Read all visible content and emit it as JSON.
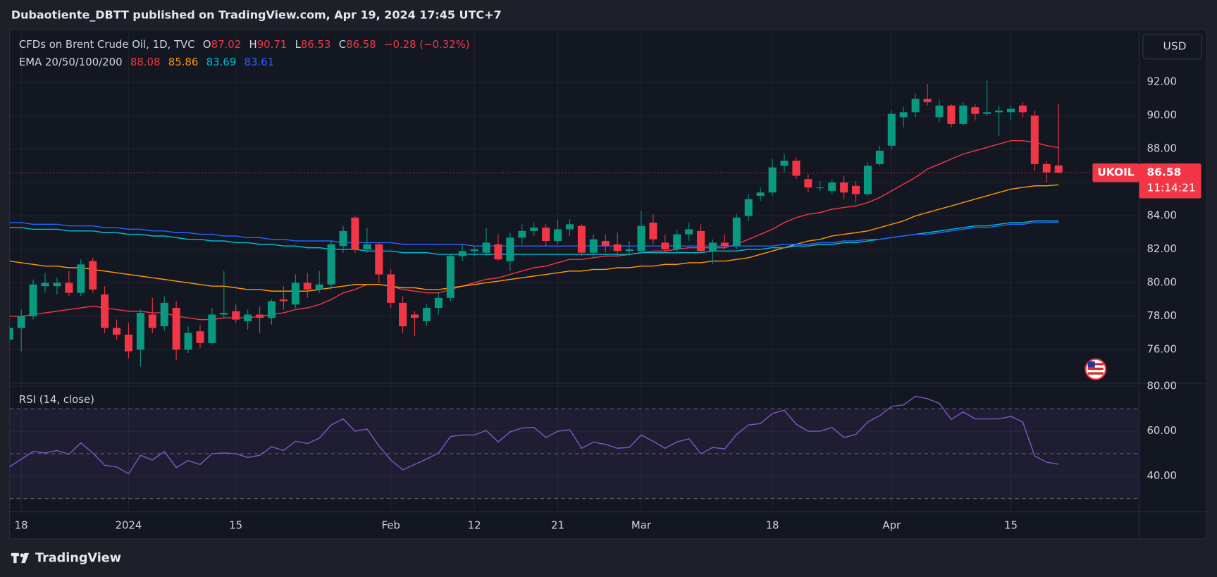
{
  "header": {
    "text": "Dubaotiente_DBTT published on TradingView.com, Apr 19, 2024 17:45 UTC+7"
  },
  "chart_data": {
    "type": "candlestick",
    "title": "CFDs on Brent Crude Oil, 1D, TVC",
    "ohlc_labels": [
      "O",
      "H",
      "L",
      "C"
    ],
    "change_label": "−0.28 (−0.32%)",
    "currency": "USD",
    "symbol": "UKOIL",
    "countdown": "11:14:21",
    "categories": [
      null,
      "18",
      null,
      null,
      null,
      null,
      null,
      null,
      null,
      null,
      "2024",
      null,
      null,
      null,
      null,
      null,
      null,
      null,
      null,
      "15",
      null,
      null,
      null,
      null,
      null,
      null,
      null,
      null,
      null,
      null,
      null,
      null,
      "Feb",
      null,
      null,
      null,
      null,
      null,
      null,
      "12",
      null,
      null,
      null,
      null,
      null,
      null,
      "21",
      null,
      null,
      null,
      null,
      null,
      null,
      "Mar",
      null,
      null,
      null,
      null,
      null,
      null,
      null,
      null,
      null,
      null,
      "18",
      null,
      null,
      null,
      null,
      null,
      null,
      null,
      null,
      null,
      "Apr",
      null,
      null,
      null,
      null,
      null,
      null,
      null,
      null,
      null,
      "15",
      null,
      null,
      null,
      null
    ],
    "open": [
      76.6,
      77.3,
      78.0,
      79.8,
      79.8,
      80.0,
      79.4,
      81.3,
      79.3,
      77.3,
      76.9,
      76.0,
      78.1,
      77.4,
      78.5,
      76.0,
      77.1,
      76.4,
      78.1,
      78.3,
      77.7,
      78.1,
      77.9,
      79.0,
      78.7,
      80.0,
      79.6,
      79.9,
      82.2,
      83.9,
      82.0,
      82.3,
      80.5,
      78.8,
      78.1,
      77.7,
      78.5,
      79.1,
      81.6,
      81.9,
      81.8,
      82.3,
      81.3,
      82.7,
      83.1,
      83.3,
      82.5,
      83.2,
      83.4,
      81.8,
      82.5,
      82.3,
      81.9,
      81.9,
      83.6,
      82.4,
      82.0,
      82.9,
      83.1,
      81.9,
      82.4,
      82.2,
      84.0,
      85.2,
      85.4,
      87.0,
      87.3,
      86.2,
      85.7,
      85.5,
      86.0,
      85.8,
      85.3,
      87.1,
      88.2,
      89.9,
      90.2,
      91.0,
      89.9,
      90.6,
      89.5,
      90.5,
      90.1,
      90.2,
      90.2,
      90.6,
      90.0,
      87.1,
      87.02
    ],
    "high": [
      77.5,
      78.4,
      80.2,
      80.6,
      80.3,
      80.7,
      81.4,
      81.5,
      79.8,
      77.8,
      77.6,
      78.4,
      79.1,
      79.2,
      78.9,
      77.4,
      77.5,
      78.5,
      80.7,
      78.7,
      78.4,
      78.6,
      79.0,
      79.8,
      80.5,
      80.6,
      80.7,
      82.5,
      83.4,
      84.0,
      83.3,
      82.4,
      80.8,
      79.2,
      78.3,
      78.7,
      79.4,
      81.7,
      82.3,
      82.2,
      83.3,
      82.9,
      83.0,
      83.5,
      83.6,
      83.5,
      83.8,
      83.8,
      83.5,
      82.9,
      82.9,
      83.0,
      82.5,
      84.3,
      84.1,
      82.9,
      83.2,
      83.6,
      83.5,
      82.6,
      82.9,
      84.1,
      85.3,
      85.7,
      87.4,
      87.7,
      87.5,
      86.5,
      86.1,
      86.2,
      86.4,
      86.1,
      87.2,
      88.2,
      90.3,
      90.5,
      91.3,
      91.9,
      90.9,
      90.7,
      90.8,
      90.7,
      92.1,
      90.6,
      90.6,
      90.8,
      90.3,
      87.3,
      90.71
    ],
    "low": [
      76.3,
      75.9,
      77.8,
      79.4,
      79.3,
      79.2,
      79.2,
      79.4,
      77.0,
      76.6,
      75.5,
      75.0,
      77.0,
      77.1,
      75.4,
      75.8,
      76.1,
      76.3,
      77.9,
      77.6,
      77.2,
      77.0,
      77.5,
      78.4,
      78.5,
      79.1,
      79.4,
      79.6,
      81.8,
      81.8,
      81.8,
      80.0,
      78.5,
      77.0,
      76.8,
      77.4,
      78.1,
      78.9,
      81.3,
      81.6,
      81.6,
      81.3,
      80.7,
      82.3,
      82.8,
      82.2,
      82.3,
      82.8,
      81.6,
      81.5,
      81.8,
      81.6,
      81.6,
      81.8,
      82.3,
      81.8,
      81.8,
      82.5,
      81.8,
      81.1,
      82.0,
      82.0,
      83.7,
      84.9,
      85.2,
      86.6,
      86.2,
      85.4,
      85.5,
      85.3,
      85.0,
      84.8,
      85.2,
      87.0,
      88.0,
      89.3,
      89.9,
      90.6,
      89.6,
      89.3,
      89.4,
      89.7,
      90.0,
      88.8,
      89.7,
      89.9,
      86.7,
      86.0,
      86.53
    ],
    "close": [
      77.3,
      78.0,
      79.9,
      80.0,
      80.0,
      79.4,
      81.1,
      79.6,
      77.3,
      76.9,
      75.9,
      78.2,
      77.3,
      78.8,
      76.0,
      77.0,
      76.4,
      78.1,
      78.2,
      77.8,
      78.1,
      77.9,
      78.9,
      78.9,
      80.0,
      79.6,
      79.9,
      82.3,
      83.1,
      82.0,
      82.3,
      80.5,
      78.8,
      77.4,
      77.9,
      78.5,
      79.1,
      81.6,
      81.9,
      82.0,
      82.4,
      81.4,
      82.7,
      83.1,
      83.3,
      82.5,
      83.2,
      83.5,
      81.8,
      82.6,
      82.2,
      81.9,
      82.0,
      83.4,
      82.6,
      82.0,
      82.9,
      83.2,
      81.9,
      82.4,
      82.2,
      83.9,
      85.0,
      85.4,
      86.9,
      87.3,
      86.4,
      85.7,
      85.7,
      86.0,
      85.4,
      85.3,
      87.0,
      87.9,
      90.1,
      90.2,
      91.0,
      90.8,
      90.6,
      89.5,
      90.6,
      90.1,
      90.2,
      90.3,
      90.4,
      90.2,
      87.1,
      86.6,
      86.58
    ],
    "up_color": "#089981",
    "down_color": "#f23645",
    "ylim": [
      74,
      95.15
    ],
    "yticks": [
      {
        "value": 76,
        "label": "76.00"
      },
      {
        "value": 78,
        "label": "78.00"
      },
      {
        "value": 80,
        "label": "80.00"
      },
      {
        "value": 82,
        "label": "82.00"
      },
      {
        "value": 84,
        "label": "84.00"
      },
      {
        "value": 86,
        "label": "86.00"
      },
      {
        "value": 88,
        "label": "88.00"
      },
      {
        "value": 90,
        "label": "90.00"
      },
      {
        "value": 92,
        "label": "92.00"
      }
    ],
    "grid": true,
    "indicator": "EMA 20/50/100/200",
    "series": [
      {
        "color": "#f23645",
        "values": [
          78.0,
          78.0,
          78.1,
          78.2,
          78.3,
          78.4,
          78.5,
          78.6,
          78.5,
          78.4,
          78.3,
          78.3,
          78.2,
          78.2,
          78.0,
          77.9,
          77.8,
          77.8,
          77.9,
          77.9,
          77.9,
          78.0,
          78.1,
          78.2,
          78.4,
          78.5,
          78.7,
          79.0,
          79.4,
          79.6,
          79.9,
          79.9,
          79.8,
          79.6,
          79.5,
          79.4,
          79.4,
          79.6,
          79.8,
          80.0,
          80.2,
          80.3,
          80.5,
          80.7,
          80.9,
          81.0,
          81.2,
          81.4,
          81.4,
          81.5,
          81.6,
          81.6,
          81.7,
          81.8,
          81.9,
          81.9,
          82.0,
          82.1,
          82.1,
          82.1,
          82.1,
          82.3,
          82.6,
          82.9,
          83.2,
          83.6,
          83.9,
          84.1,
          84.2,
          84.4,
          84.5,
          84.6,
          84.8,
          85.1,
          85.5,
          85.9,
          86.3,
          86.8,
          87.1,
          87.4,
          87.7,
          87.9,
          88.1,
          88.3,
          88.5,
          88.5,
          88.4,
          88.2,
          88.08
        ]
      },
      {
        "color": "#ff9800",
        "values": [
          81.3,
          81.2,
          81.1,
          81.0,
          81.0,
          80.9,
          80.9,
          80.8,
          80.7,
          80.6,
          80.5,
          80.4,
          80.3,
          80.2,
          80.1,
          80.0,
          79.9,
          79.8,
          79.8,
          79.7,
          79.6,
          79.6,
          79.5,
          79.5,
          79.5,
          79.5,
          79.6,
          79.7,
          79.8,
          79.9,
          79.9,
          79.9,
          79.8,
          79.7,
          79.7,
          79.6,
          79.6,
          79.7,
          79.8,
          79.9,
          80.0,
          80.1,
          80.2,
          80.3,
          80.4,
          80.5,
          80.6,
          80.7,
          80.7,
          80.8,
          80.8,
          80.9,
          80.9,
          81.0,
          81.0,
          81.1,
          81.1,
          81.2,
          81.2,
          81.3,
          81.3,
          81.4,
          81.5,
          81.7,
          81.9,
          82.1,
          82.3,
          82.5,
          82.6,
          82.8,
          82.9,
          83.0,
          83.1,
          83.3,
          83.5,
          83.7,
          84.0,
          84.2,
          84.4,
          84.6,
          84.8,
          85.0,
          85.2,
          85.4,
          85.6,
          85.7,
          85.8,
          85.8,
          85.86
        ]
      },
      {
        "color": "#00bcd4",
        "values": [
          83.3,
          83.3,
          83.2,
          83.2,
          83.2,
          83.1,
          83.1,
          83.1,
          83.0,
          83.0,
          82.9,
          82.9,
          82.8,
          82.8,
          82.7,
          82.6,
          82.6,
          82.5,
          82.5,
          82.4,
          82.4,
          82.3,
          82.3,
          82.2,
          82.2,
          82.1,
          82.1,
          82.0,
          82.0,
          82.0,
          81.9,
          81.9,
          81.9,
          81.8,
          81.8,
          81.8,
          81.7,
          81.7,
          81.7,
          81.7,
          81.7,
          81.7,
          81.7,
          81.7,
          81.7,
          81.7,
          81.7,
          81.7,
          81.7,
          81.7,
          81.7,
          81.7,
          81.7,
          81.8,
          81.8,
          81.8,
          81.8,
          81.8,
          81.8,
          81.9,
          81.9,
          81.9,
          82.0,
          82.0,
          82.1,
          82.1,
          82.2,
          82.2,
          82.3,
          82.3,
          82.4,
          82.4,
          82.5,
          82.6,
          82.7,
          82.8,
          82.9,
          83.0,
          83.1,
          83.2,
          83.3,
          83.4,
          83.4,
          83.5,
          83.6,
          83.6,
          83.7,
          83.7,
          83.69
        ]
      },
      {
        "color": "#2962ff",
        "values": [
          83.6,
          83.6,
          83.5,
          83.5,
          83.5,
          83.4,
          83.4,
          83.4,
          83.3,
          83.3,
          83.2,
          83.2,
          83.1,
          83.1,
          83.0,
          83.0,
          82.9,
          82.9,
          82.8,
          82.8,
          82.7,
          82.7,
          82.6,
          82.6,
          82.5,
          82.5,
          82.5,
          82.5,
          82.4,
          82.4,
          82.4,
          82.4,
          82.4,
          82.3,
          82.3,
          82.3,
          82.3,
          82.3,
          82.3,
          82.2,
          82.2,
          82.2,
          82.2,
          82.2,
          82.2,
          82.2,
          82.2,
          82.2,
          82.2,
          82.2,
          82.2,
          82.2,
          82.2,
          82.2,
          82.2,
          82.2,
          82.2,
          82.2,
          82.2,
          82.2,
          82.2,
          82.2,
          82.2,
          82.2,
          82.2,
          82.3,
          82.3,
          82.3,
          82.4,
          82.4,
          82.5,
          82.5,
          82.6,
          82.6,
          82.7,
          82.8,
          82.9,
          82.9,
          83.0,
          83.1,
          83.2,
          83.3,
          83.3,
          83.4,
          83.5,
          83.5,
          83.6,
          83.6,
          83.61
        ]
      }
    ],
    "rsi": {
      "title": "RSI (14, close)",
      "color": "#7e57c2",
      "values": [
        44.1,
        47.5,
        51.0,
        50.3,
        51.4,
        49.7,
        54.8,
        50.3,
        44.8,
        44.1,
        41.0,
        49.3,
        47.2,
        51.0,
        43.8,
        46.9,
        45.2,
        50.0,
        50.3,
        50.0,
        48.3,
        49.3,
        53.1,
        51.4,
        55.5,
        54.5,
        56.9,
        62.8,
        65.5,
        60.0,
        61.0,
        53.4,
        47.2,
        42.8,
        45.2,
        47.6,
        50.3,
        57.6,
        58.3,
        58.3,
        60.3,
        55.2,
        59.7,
        61.4,
        61.7,
        57.2,
        60.0,
        60.7,
        52.4,
        55.2,
        54.1,
        52.4,
        52.8,
        58.3,
        55.5,
        52.4,
        55.2,
        56.6,
        50.0,
        52.8,
        52.1,
        58.6,
        62.8,
        63.4,
        67.9,
        69.3,
        63.1,
        60.0,
        60.0,
        61.7,
        57.2,
        58.6,
        64.1,
        66.9,
        71.0,
        71.7,
        75.5,
        74.5,
        72.4,
        65.2,
        68.6,
        65.5,
        65.5,
        65.5,
        66.6,
        64.1,
        49.0,
        46.2,
        45.3
      ],
      "ylim": [
        24.1,
        81.4
      ],
      "yticks": [
        {
          "value": 40,
          "label": "40.00"
        },
        {
          "value": 60,
          "label": "60.00"
        },
        {
          "value": 80,
          "label": "80.00"
        }
      ],
      "levels": [
        70,
        50,
        30
      ]
    }
  },
  "footer": {
    "brand": "TradingView"
  }
}
